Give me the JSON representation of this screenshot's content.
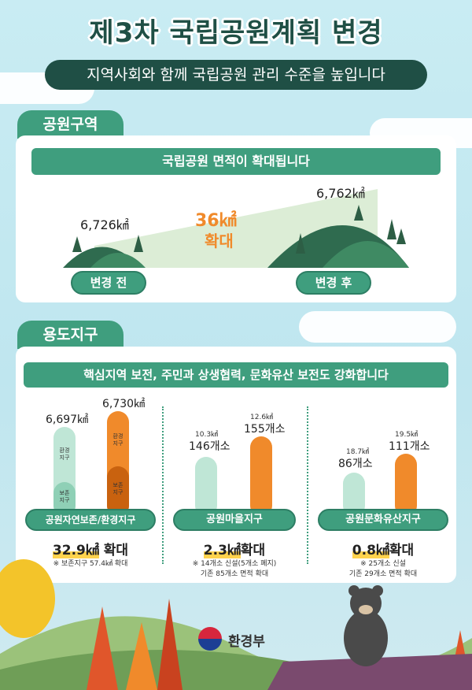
{
  "header": {
    "title": "제3차 국립공원계획 변경",
    "subtitle": "지역사회와 함께 국립공원 관리 수준을 높입니다"
  },
  "park_area": {
    "section_label": "공원구역",
    "band_text": "국립공원 면적이 확대됩니다",
    "before_value": "6,726㎢",
    "after_value": "6,762㎢",
    "increase_value": "36㎢",
    "increase_word": "확대",
    "before_label": "변경 전",
    "after_label": "변경 후"
  },
  "zones": {
    "section_label": "용도지구",
    "band_text": "핵심지역 보전, 주민과 상생협력, 문화유산 보전도 강화합니다",
    "nature": {
      "before_value": "6,697㎢",
      "after_value": "6,730㎢",
      "before_upper": "환경\n지구",
      "before_lower": "보존\n지구",
      "after_upper": "환경\n지구",
      "after_lower": "보존\n지구",
      "label": "공원자연보존/환경지구",
      "result_value": "32.9㎢",
      "result_word": "확대",
      "note": "※ 보존지구 57.4㎢ 확대"
    },
    "village": {
      "before_area": "10.3㎢",
      "before_count": "146개소",
      "after_area": "12.6㎢",
      "after_count": "155개소",
      "label": "공원마을지구",
      "result_value": "2.3㎢",
      "result_word": "확대",
      "note_line1": "※ 14개소 신설(5개소 폐지)",
      "note_line2": "기존 85개소 면적 확대"
    },
    "heritage": {
      "before_area": "18.7㎢",
      "before_count": "86개소",
      "after_area": "19.5㎢",
      "after_count": "111개소",
      "label": "공원문화유산지구",
      "result_value": "0.8㎢",
      "result_word": "확대",
      "note_line1": "※ 25개소 신설",
      "note_line2": "기존 29개소 면적 확대"
    }
  },
  "footer": {
    "ministry": "환경부"
  },
  "colors": {
    "green": "#3f9e7e",
    "dark_green": "#1f4f45",
    "orange": "#f08a2b",
    "mint": "#bfe6d6"
  }
}
